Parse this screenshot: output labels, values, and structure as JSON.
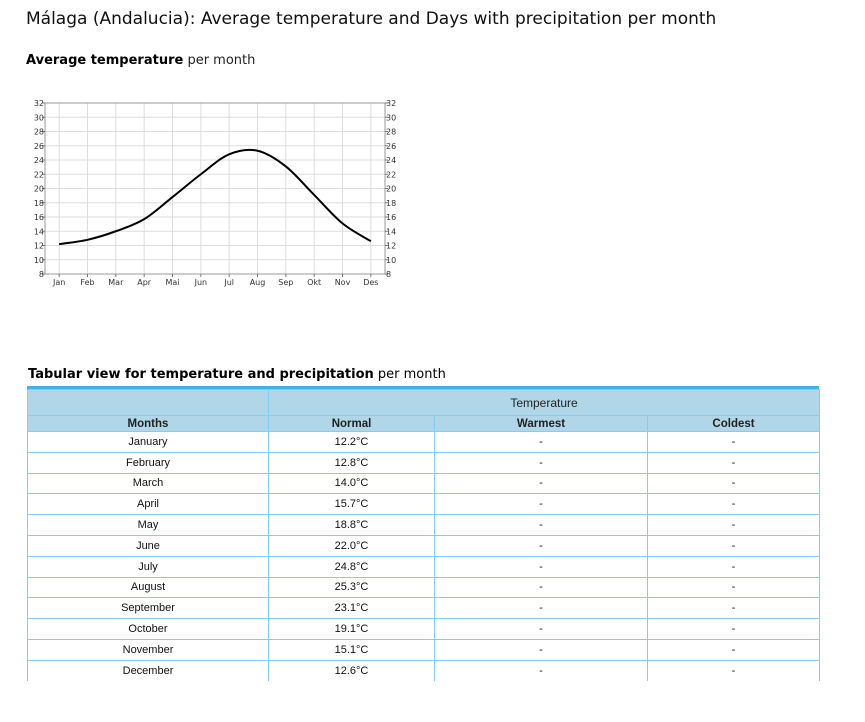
{
  "page": {
    "title": "Málaga (Andalucia): Average temperature and Days with precipitation per month"
  },
  "chart_section": {
    "heading_bold": "Average temperature",
    "heading_rest": " per month"
  },
  "chart_data": {
    "type": "line",
    "categories": [
      "Jan",
      "Feb",
      "Mar",
      "Apr",
      "Mai",
      "Jun",
      "Jul",
      "Aug",
      "Sep",
      "Okt",
      "Nov",
      "Des"
    ],
    "series": [
      {
        "values": [
          12.2,
          12.8,
          14.0,
          15.7,
          18.8,
          22.0,
          24.8,
          25.3,
          23.1,
          19.1,
          15.1,
          12.6
        ],
        "color": "#000000"
      }
    ],
    "ylim": [
      8,
      32
    ],
    "y_ticks": [
      8,
      10,
      12,
      14,
      16,
      18,
      20,
      22,
      24,
      26,
      28,
      30,
      32
    ],
    "y_ticks_right": true,
    "grid": true,
    "title": "",
    "xlabel": "",
    "ylabel": ""
  },
  "table_section": {
    "heading_bold": "Tabular view for temperature and precipitation",
    "heading_rest": " per month",
    "group_header": "Temperature",
    "columns": [
      "Months",
      "Normal",
      "Warmest",
      "Coldest"
    ],
    "rows": [
      [
        "January",
        "12.2°C",
        "-",
        "-"
      ],
      [
        "February",
        "12.8°C",
        "-",
        "-"
      ],
      [
        "March",
        "14.0°C",
        "-",
        "-"
      ],
      [
        "April",
        "15.7°C",
        "-",
        "-"
      ],
      [
        "May",
        "18.8°C",
        "-",
        "-"
      ],
      [
        "June",
        "22.0°C",
        "-",
        "-"
      ],
      [
        "July",
        "24.8°C",
        "-",
        "-"
      ],
      [
        "August",
        "25.3°C",
        "-",
        "-"
      ],
      [
        "September",
        "23.1°C",
        "-",
        "-"
      ],
      [
        "October",
        "19.1°C",
        "-",
        "-"
      ],
      [
        "November",
        "15.1°C",
        "-",
        "-"
      ],
      [
        "December",
        "12.6°C",
        "-",
        "-"
      ]
    ]
  }
}
